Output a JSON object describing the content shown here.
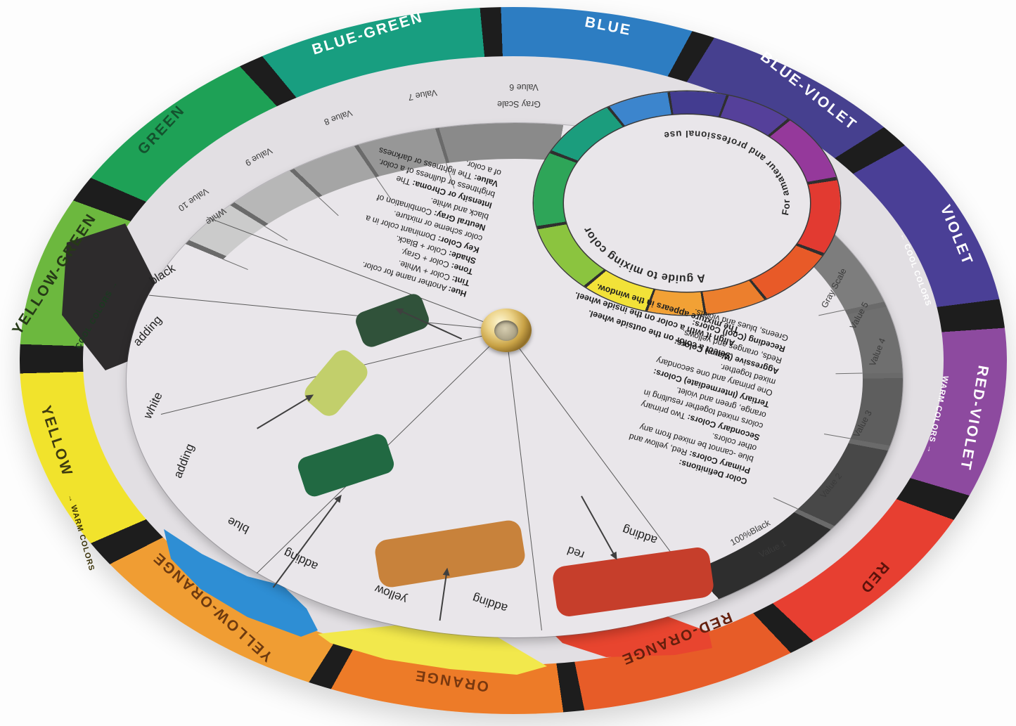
{
  "wheel": {
    "outer_segments": [
      {
        "name": "blue",
        "label": "BLUE",
        "color": "#2d7dc2",
        "label_color": "#ffffff"
      },
      {
        "name": "blue-violet",
        "label": "BLUE-VIOLET",
        "color": "#46408f",
        "label_color": "#ffffff"
      },
      {
        "name": "violet",
        "label": "VIOLET",
        "color": "#4a3f96",
        "label_color": "#ffffff"
      },
      {
        "name": "red-violet",
        "label": "RED-VIOLET",
        "color": "#8d4a9f",
        "label_color": "#ffffff"
      },
      {
        "name": "red",
        "label": "RED",
        "color": "#e73f31",
        "label_color": "#5c120b"
      },
      {
        "name": "red-orange",
        "label": "RED-ORANGE",
        "color": "#e75c28",
        "label_color": "#641f0d"
      },
      {
        "name": "orange",
        "label": "ORANGE",
        "color": "#ed7b28",
        "label_color": "#79380f"
      },
      {
        "name": "yellow-orange",
        "label": "YELLOW-ORANGE",
        "color": "#f09d33",
        "label_color": "#6d3a10"
      },
      {
        "name": "yellow",
        "label": "YELLOW",
        "color": "#f1e32c",
        "label_color": "#3f3c10"
      },
      {
        "name": "yellow-green",
        "label": "YELLOW-GREEN",
        "color": "#6cb83e",
        "label_color": "#263a17"
      },
      {
        "name": "green",
        "label": "GREEN",
        "color": "#1ea156",
        "label_color": "#14522e"
      },
      {
        "name": "blue-green",
        "label": "BLUE-GREEN",
        "color": "#189e80",
        "label_color": "#ffffff"
      }
    ],
    "direction_labels": [
      {
        "name": "cool-on-yellow-green",
        "label": "COOL COLORS →",
        "color": "#1b3a20"
      },
      {
        "name": "warm-on-yellow",
        "label": "→ WARM COLORS",
        "color": "#3a3208"
      },
      {
        "name": "cool-on-violet",
        "label": "← COOL COLORS",
        "color": "#ffffff"
      },
      {
        "name": "warm-on-red-violet",
        "label": "WARM COLORS →",
        "color": "#ffffff"
      }
    ]
  },
  "gray_scale": {
    "title": "Gray Scale",
    "white_label": "White",
    "black_label": "100%Black",
    "values": {
      "v1": "Value 1",
      "v2": "Value 2",
      "v3": "Value 3",
      "v4": "Value 4",
      "v5": "Value 5",
      "v6": "Value 6",
      "v7": "Value 7",
      "v8": "Value 8",
      "v9": "Value 9",
      "v10": "Value 10"
    },
    "upper_colors": {
      "v6": "#8a8a8a",
      "v7": "#979797",
      "v8": "#a5a5a5",
      "v9": "#b7b7b7",
      "v10": "#cbcbcb"
    },
    "lower_colors": {
      "v5": "#7d7d7d",
      "v4": "#6f6f6f",
      "v3": "#5e5e5e",
      "v2": "#484848",
      "v1": "#2e2e2e"
    }
  },
  "mixing": {
    "adding": "adding",
    "black": "black",
    "white": "white",
    "blue": "blue",
    "yellow": "yellow",
    "red": "red"
  },
  "windows": {
    "black_mix": "#30523a",
    "white_mix": "#c2cf6b",
    "blue_mix": "#216942",
    "yellow_mix": "#c8823b",
    "red_mix": "#c63e2b"
  },
  "under_wedges": {
    "black": "#2d2b2c",
    "blue": "#2e8ed4",
    "yellow": "#f2e84c",
    "red": "#e8452f"
  },
  "mini_wheel": {
    "title": "A guide to mixing color",
    "subtitle": "For amateur and professional use",
    "segments": [
      "#3c85cd",
      "#433c90",
      "#55409a",
      "#95399b",
      "#e23a31",
      "#e85a28",
      "#ec7f2d",
      "#f2a135",
      "#f2e238",
      "#8bc43f",
      "#2ea558",
      "#1b9d7d"
    ]
  },
  "instructions": {
    "line1": "Select a color on the outside wheel.",
    "line2": "Align it with a color on the inside wheel.",
    "line3": "The mixture appears in the window."
  },
  "definitions_left": {
    "lines": [
      {
        "b": "Hue:",
        "t": " Another name for color."
      },
      {
        "b": "Tint:",
        "t": " Color + White."
      },
      {
        "b": "Tone:",
        "t": " Color + Gray."
      },
      {
        "b": "Shade:",
        "t": " Color + Black."
      },
      {
        "b": "Key Color:",
        "t": " Dominant color in a"
      },
      {
        "b": "",
        "t": "color scheme or mixture."
      },
      {
        "b": "Neutral Gray:",
        "t": " Combination of"
      },
      {
        "b": "",
        "t": "black and white."
      },
      {
        "b": "Intensity or Chroma:",
        "t": " The"
      },
      {
        "b": "",
        "t": "brightness or dullness of a color."
      },
      {
        "b": "Value:",
        "t": " The lightness or darkness"
      },
      {
        "b": "",
        "t": "of a color."
      }
    ]
  },
  "definitions_right": {
    "lines": [
      {
        "b": "Color Definitions:",
        "t": ""
      },
      {
        "b": "Primary Colors:",
        "t": " Red, yellow and"
      },
      {
        "b": "",
        "t": "blue -cannot be mixed from any"
      },
      {
        "b": "",
        "t": "other colors."
      },
      {
        "b": "Secondary Colors:",
        "t": " Two primary"
      },
      {
        "b": "",
        "t": "colors mixed together resulting in"
      },
      {
        "b": "",
        "t": "orange, green and violet."
      },
      {
        "b": "Tertiary (Intermediate) Colors:",
        "t": ""
      },
      {
        "b": "",
        "t": "One primary and one secondary"
      },
      {
        "b": "",
        "t": "mixed together."
      },
      {
        "b": "Aggressive (Warm) Colors:",
        "t": ""
      },
      {
        "b": "",
        "t": "Reds, oranges and yellows."
      },
      {
        "b": "Receding (Cool) Colors:",
        "t": ""
      },
      {
        "b": "",
        "t": "Greens, blues and violets."
      }
    ]
  }
}
